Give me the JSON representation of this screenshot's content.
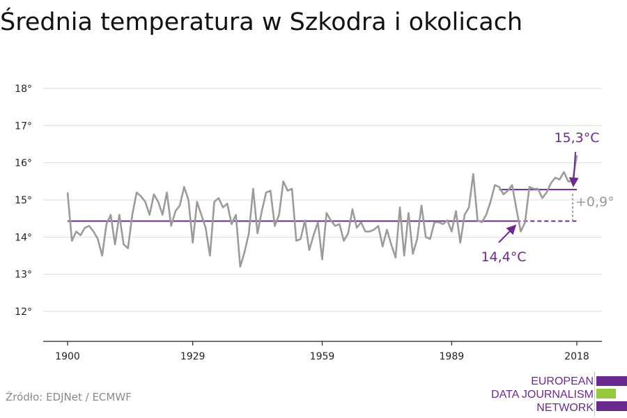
{
  "title": "Średnia temperatura w Szkodra i okolicach",
  "source": "Źródło: EDJNet / ECMWF",
  "logo": {
    "lines": [
      "EUROPEAN",
      "DATA JOURNALISM",
      "NETWORK"
    ],
    "name": "edjnet-logo",
    "colors": {
      "purple": "#6a2a8e",
      "green": "#96c83c"
    }
  },
  "chart_data": {
    "type": "line",
    "title": "Średnia temperatura w Szkodra i okolicach",
    "xlabel": "",
    "ylabel": "",
    "xlim": [
      1900,
      2018
    ],
    "ylim": [
      12.3,
      18.5
    ],
    "yticks": [
      12,
      13,
      14,
      15,
      16,
      17,
      18
    ],
    "ytick_labels": [
      "12°",
      "13°",
      "14°",
      "15°",
      "16°",
      "17°",
      "18°"
    ],
    "xticks": [
      1900,
      1929,
      1959,
      1989,
      2018
    ],
    "xtick_labels": [
      "1900",
      "1929",
      "1959",
      "1989",
      "2018"
    ],
    "grid": true,
    "colors": {
      "series": "#9b9b9b",
      "average": "#6a2a8e",
      "diff": "#9b9b9b"
    },
    "series": [
      {
        "values": [
          {
            "x": 1900,
            "y": 15.2
          },
          {
            "x": 1901,
            "y": 13.9
          },
          {
            "x": 1902,
            "y": 14.15
          },
          {
            "x": 1903,
            "y": 14.05
          },
          {
            "x": 1904,
            "y": 14.25
          },
          {
            "x": 1905,
            "y": 14.3
          },
          {
            "x": 1906,
            "y": 14.15
          },
          {
            "x": 1907,
            "y": 13.95
          },
          {
            "x": 1908,
            "y": 13.5
          },
          {
            "x": 1909,
            "y": 14.35
          },
          {
            "x": 1910,
            "y": 14.6
          },
          {
            "x": 1911,
            "y": 13.8
          },
          {
            "x": 1912,
            "y": 14.6
          },
          {
            "x": 1913,
            "y": 13.8
          },
          {
            "x": 1914,
            "y": 13.7
          },
          {
            "x": 1915,
            "y": 14.6
          },
          {
            "x": 1916,
            "y": 15.2
          },
          {
            "x": 1917,
            "y": 15.1
          },
          {
            "x": 1918,
            "y": 14.95
          },
          {
            "x": 1919,
            "y": 14.6
          },
          {
            "x": 1920,
            "y": 15.15
          },
          {
            "x": 1921,
            "y": 14.95
          },
          {
            "x": 1922,
            "y": 14.6
          },
          {
            "x": 1923,
            "y": 15.2
          },
          {
            "x": 1924,
            "y": 14.3
          },
          {
            "x": 1925,
            "y": 14.7
          },
          {
            "x": 1926,
            "y": 14.85
          },
          {
            "x": 1927,
            "y": 15.35
          },
          {
            "x": 1928,
            "y": 15.0
          },
          {
            "x": 1929,
            "y": 13.85
          },
          {
            "x": 1930,
            "y": 14.95
          },
          {
            "x": 1931,
            "y": 14.6
          },
          {
            "x": 1932,
            "y": 14.25
          },
          {
            "x": 1933,
            "y": 13.5
          },
          {
            "x": 1934,
            "y": 14.95
          },
          {
            "x": 1935,
            "y": 15.05
          },
          {
            "x": 1936,
            "y": 14.8
          },
          {
            "x": 1937,
            "y": 14.9
          },
          {
            "x": 1938,
            "y": 14.35
          },
          {
            "x": 1939,
            "y": 14.6
          },
          {
            "x": 1940,
            "y": 13.2
          },
          {
            "x": 1941,
            "y": 13.6
          },
          {
            "x": 1942,
            "y": 14.1
          },
          {
            "x": 1943,
            "y": 15.3
          },
          {
            "x": 1944,
            "y": 14.1
          },
          {
            "x": 1945,
            "y": 14.7
          },
          {
            "x": 1946,
            "y": 15.2
          },
          {
            "x": 1947,
            "y": 15.25
          },
          {
            "x": 1948,
            "y": 14.3
          },
          {
            "x": 1949,
            "y": 14.6
          },
          {
            "x": 1950,
            "y": 15.5
          },
          {
            "x": 1951,
            "y": 15.25
          },
          {
            "x": 1952,
            "y": 15.3
          },
          {
            "x": 1953,
            "y": 13.9
          },
          {
            "x": 1954,
            "y": 13.95
          },
          {
            "x": 1955,
            "y": 14.45
          },
          {
            "x": 1956,
            "y": 13.65
          },
          {
            "x": 1957,
            "y": 14.05
          },
          {
            "x": 1958,
            "y": 14.4
          },
          {
            "x": 1959,
            "y": 13.4
          },
          {
            "x": 1960,
            "y": 14.65
          },
          {
            "x": 1961,
            "y": 14.45
          },
          {
            "x": 1962,
            "y": 14.3
          },
          {
            "x": 1963,
            "y": 14.35
          },
          {
            "x": 1964,
            "y": 13.9
          },
          {
            "x": 1965,
            "y": 14.1
          },
          {
            "x": 1966,
            "y": 14.75
          },
          {
            "x": 1967,
            "y": 14.25
          },
          {
            "x": 1968,
            "y": 14.4
          },
          {
            "x": 1969,
            "y": 14.15
          },
          {
            "x": 1970,
            "y": 14.15
          },
          {
            "x": 1971,
            "y": 14.2
          },
          {
            "x": 1972,
            "y": 14.3
          },
          {
            "x": 1973,
            "y": 13.75
          },
          {
            "x": 1974,
            "y": 14.2
          },
          {
            "x": 1975,
            "y": 13.8
          },
          {
            "x": 1976,
            "y": 13.45
          },
          {
            "x": 1977,
            "y": 14.8
          },
          {
            "x": 1978,
            "y": 13.5
          },
          {
            "x": 1979,
            "y": 14.65
          },
          {
            "x": 1980,
            "y": 13.55
          },
          {
            "x": 1981,
            "y": 13.95
          },
          {
            "x": 1982,
            "y": 14.85
          },
          {
            "x": 1983,
            "y": 14.0
          },
          {
            "x": 1984,
            "y": 13.95
          },
          {
            "x": 1985,
            "y": 14.4
          },
          {
            "x": 1986,
            "y": 14.4
          },
          {
            "x": 1987,
            "y": 14.35
          },
          {
            "x": 1988,
            "y": 14.45
          },
          {
            "x": 1989,
            "y": 14.15
          },
          {
            "x": 1990,
            "y": 14.7
          },
          {
            "x": 1991,
            "y": 13.85
          },
          {
            "x": 1992,
            "y": 14.6
          },
          {
            "x": 1993,
            "y": 14.8
          },
          {
            "x": 1994,
            "y": 15.7
          },
          {
            "x": 1995,
            "y": 14.45
          },
          {
            "x": 1996,
            "y": 14.4
          },
          {
            "x": 1997,
            "y": 14.6
          },
          {
            "x": 1998,
            "y": 14.95
          },
          {
            "x": 1999,
            "y": 15.4
          },
          {
            "x": 2000,
            "y": 15.35
          },
          {
            "x": 2001,
            "y": 15.15
          },
          {
            "x": 2002,
            "y": 15.25
          },
          {
            "x": 2003,
            "y": 15.4
          },
          {
            "x": 2004,
            "y": 14.75
          },
          {
            "x": 2005,
            "y": 14.15
          },
          {
            "x": 2006,
            "y": 14.4
          },
          {
            "x": 2007,
            "y": 15.35
          },
          {
            "x": 2008,
            "y": 15.3
          },
          {
            "x": 2009,
            "y": 15.3
          },
          {
            "x": 2010,
            "y": 15.05
          },
          {
            "x": 2011,
            "y": 15.2
          },
          {
            "x": 2012,
            "y": 15.45
          },
          {
            "x": 2013,
            "y": 15.6
          },
          {
            "x": 2014,
            "y": 15.55
          },
          {
            "x": 2015,
            "y": 15.75
          },
          {
            "x": 2016,
            "y": 15.5
          },
          {
            "x": 2017,
            "y": 15.5
          },
          {
            "x": 2018,
            "y": 16.2
          }
        ]
      }
    ],
    "reference_lines": [
      {
        "label": "14,4°C",
        "y": 14.43,
        "x_start": 1900,
        "x_end": 2018,
        "solid_until": 2004
      },
      {
        "label": "15,3°C",
        "y": 15.28,
        "x_start": 2000,
        "x_end": 2018
      }
    ],
    "annotations": [
      {
        "text": "15,3°C",
        "points_to": {
          "x": 2018,
          "y": 15.28
        }
      },
      {
        "text": "14,4°C",
        "points_to": {
          "x": 2004,
          "y": 14.43
        }
      },
      {
        "text": "+0,9°",
        "between": [
          14.43,
          15.28
        ],
        "at_x": 2018
      }
    ]
  }
}
